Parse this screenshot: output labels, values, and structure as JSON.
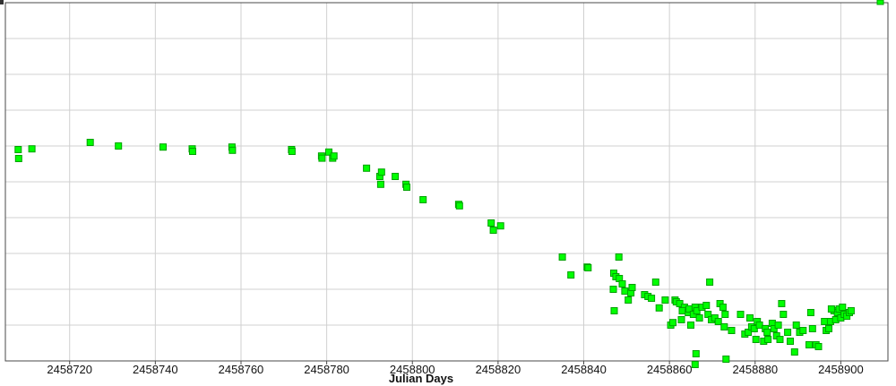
{
  "chart_data": {
    "type": "scatter",
    "title": "",
    "xlabel": "Julian Days",
    "ylabel": "",
    "xlim": [
      2458705,
      2458911
    ],
    "ylim": [
      0,
      10
    ],
    "grid": true,
    "x_ticks": [
      2458720,
      2458740,
      2458760,
      2458780,
      2458800,
      2458820,
      2458840,
      2458860,
      2458880,
      2458900
    ],
    "y_gridlines": [
      0,
      1,
      2,
      3,
      4,
      5,
      6,
      7,
      8,
      9,
      10
    ],
    "marker_color": "#00ff00",
    "marker_edge_color": "#00a000",
    "series": [
      {
        "points": [
          [
            2458708.0,
            5.9
          ],
          [
            2458708.1,
            5.65
          ],
          [
            2458711.2,
            5.92
          ],
          [
            2458724.8,
            6.1
          ],
          [
            2458731.4,
            6.0
          ],
          [
            2458741.8,
            5.97
          ],
          [
            2458748.6,
            5.92
          ],
          [
            2458748.7,
            5.85
          ],
          [
            2458757.9,
            5.97
          ],
          [
            2458758.0,
            5.88
          ],
          [
            2458771.8,
            5.9
          ],
          [
            2458771.9,
            5.85
          ],
          [
            2458778.8,
            5.72
          ],
          [
            2458778.9,
            5.66
          ],
          [
            2458780.5,
            5.83
          ],
          [
            2458781.4,
            5.66
          ],
          [
            2458781.7,
            5.72
          ],
          [
            2458789.3,
            5.38
          ],
          [
            2458792.4,
            5.15
          ],
          [
            2458792.8,
            5.27
          ],
          [
            2458792.6,
            4.93
          ],
          [
            2458796.0,
            5.15
          ],
          [
            2458798.5,
            4.93
          ],
          [
            2458798.7,
            4.85
          ],
          [
            2458802.5,
            4.5
          ],
          [
            2458810.8,
            4.37
          ],
          [
            2458811.0,
            4.33
          ],
          [
            2458818.4,
            3.85
          ],
          [
            2458818.9,
            3.65
          ],
          [
            2458820.6,
            3.77
          ],
          [
            2458835.0,
            2.9
          ],
          [
            2458837.0,
            2.4
          ],
          [
            2458840.8,
            2.62
          ],
          [
            2458841.0,
            2.6
          ],
          [
            2458847.0,
            2.45
          ],
          [
            2458847.5,
            2.35
          ],
          [
            2458848.2,
            2.9
          ],
          [
            2458848.3,
            2.3
          ],
          [
            2458849.0,
            2.15
          ],
          [
            2458849.6,
            1.95
          ],
          [
            2458850.4,
            1.7
          ],
          [
            2458851.0,
            1.9
          ],
          [
            2458851.3,
            2.05
          ],
          [
            2458846.9,
            2.0
          ],
          [
            2458847.1,
            1.4
          ],
          [
            2458854.2,
            1.85
          ],
          [
            2458855.0,
            1.8
          ],
          [
            2458855.8,
            1.75
          ],
          [
            2458856.8,
            2.2
          ],
          [
            2458857.6,
            1.48
          ],
          [
            2458859.0,
            1.7
          ],
          [
            2458860.3,
            1.0
          ],
          [
            2458860.8,
            1.07
          ],
          [
            2458861.3,
            1.7
          ],
          [
            2458861.6,
            1.65
          ],
          [
            2458862.4,
            1.6
          ],
          [
            2458862.8,
            1.15
          ],
          [
            2458863.5,
            1.5
          ],
          [
            2458863.0,
            1.4
          ],
          [
            2458864.4,
            1.35
          ],
          [
            2458864.6,
            1.45
          ],
          [
            2458865.0,
            1.0
          ],
          [
            2458865.6,
            1.3
          ],
          [
            2458866.0,
            1.5
          ],
          [
            2458866.4,
            1.4
          ],
          [
            2458866.2,
            0.2
          ],
          [
            2458866.0,
            -0.1
          ],
          [
            2458867.0,
            1.2
          ],
          [
            2458867.6,
            1.5
          ],
          [
            2458868.6,
            1.55
          ],
          [
            2458869.0,
            1.3
          ],
          [
            2458869.4,
            2.2
          ],
          [
            2458869.8,
            1.15
          ],
          [
            2458870.6,
            1.2
          ],
          [
            2458871.4,
            1.1
          ],
          [
            2458871.8,
            1.6
          ],
          [
            2458872.5,
            1.5
          ],
          [
            2458872.8,
            0.95
          ],
          [
            2458873.0,
            1.3
          ],
          [
            2458873.2,
            0.05
          ],
          [
            2458874.5,
            0.85
          ],
          [
            2458876.6,
            1.3
          ],
          [
            2458877.6,
            0.75
          ],
          [
            2458878.4,
            0.8
          ],
          [
            2458878.8,
            1.2
          ],
          [
            2458879.2,
            0.95
          ],
          [
            2458879.8,
            0.9
          ],
          [
            2458880.2,
            0.6
          ],
          [
            2458880.5,
            1.1
          ],
          [
            2458881.0,
            1.0
          ],
          [
            2458882.0,
            0.55
          ],
          [
            2458882.4,
            0.9
          ],
          [
            2458882.8,
            0.8
          ],
          [
            2458883.0,
            0.6
          ],
          [
            2458884.0,
            1.05
          ],
          [
            2458884.4,
            0.9
          ],
          [
            2458885.0,
            0.7
          ],
          [
            2458885.4,
            1.0
          ],
          [
            2458885.8,
            0.6
          ],
          [
            2458886.2,
            1.6
          ],
          [
            2458886.6,
            1.3
          ],
          [
            2458887.6,
            0.8
          ],
          [
            2458888.2,
            0.55
          ],
          [
            2458889.2,
            0.25
          ],
          [
            2458889.6,
            1.0
          ],
          [
            2458890.4,
            0.8
          ],
          [
            2458891.2,
            0.85
          ],
          [
            2458892.6,
            0.45
          ],
          [
            2458893.0,
            1.35
          ],
          [
            2458893.4,
            0.9
          ],
          [
            2458894.2,
            0.45
          ],
          [
            2458894.8,
            0.4
          ],
          [
            2458896.2,
            1.1
          ],
          [
            2458896.6,
            0.85
          ],
          [
            2458897.2,
            0.9
          ],
          [
            2458897.6,
            1.1
          ],
          [
            2458898.4,
            1.4
          ],
          [
            2458898.8,
            1.15
          ],
          [
            2458899.2,
            1.35
          ],
          [
            2458899.6,
            1.45
          ],
          [
            2458900.0,
            1.2
          ],
          [
            2458900.4,
            1.5
          ],
          [
            2458900.8,
            1.3
          ],
          [
            2458901.4,
            1.25
          ],
          [
            2458902.0,
            1.35
          ],
          [
            2458902.4,
            1.4
          ],
          [
            2458897.8,
            1.45
          ]
        ]
      }
    ]
  }
}
